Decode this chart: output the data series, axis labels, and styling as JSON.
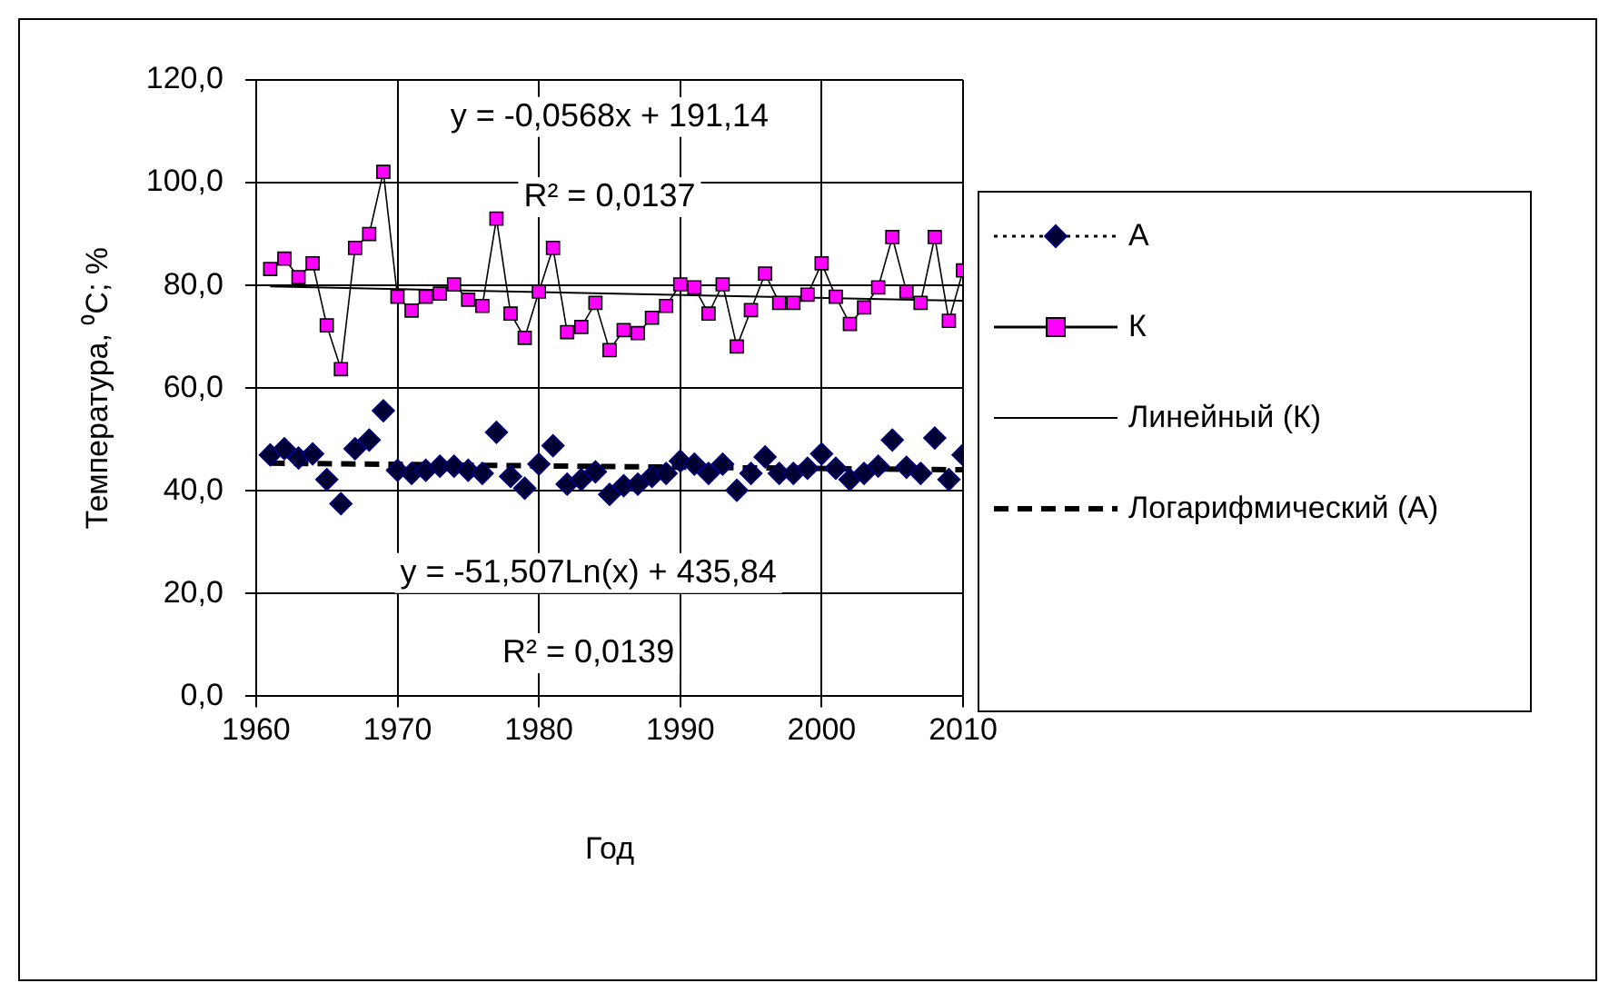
{
  "chart_data": {
    "type": "line",
    "ylabel": "Температура, ⁰C; %",
    "xlabel": "Год",
    "x": [
      1961,
      1962,
      1963,
      1964,
      1965,
      1966,
      1967,
      1968,
      1969,
      1970,
      1971,
      1972,
      1973,
      1974,
      1975,
      1976,
      1977,
      1978,
      1979,
      1980,
      1981,
      1982,
      1983,
      1984,
      1985,
      1986,
      1987,
      1988,
      1989,
      1990,
      1991,
      1992,
      1993,
      1994,
      1995,
      1996,
      1997,
      1998,
      1999,
      2000,
      2001,
      2002,
      2003,
      2004,
      2005,
      2006,
      2007,
      2008,
      2009,
      2010
    ],
    "xlim": [
      1960,
      2010
    ],
    "xticks": [
      1960,
      1970,
      1980,
      1990,
      2000,
      2010
    ],
    "ylim": [
      0,
      120
    ],
    "yticks": [
      {
        "value": 0,
        "label": "0,0"
      },
      {
        "value": 20,
        "label": "20,0"
      },
      {
        "value": 40,
        "label": "40,0"
      },
      {
        "value": 60,
        "label": "60,0"
      },
      {
        "value": 80,
        "label": "80,0"
      },
      {
        "value": 100,
        "label": "100,0"
      },
      {
        "value": 120,
        "label": "120,0"
      }
    ],
    "grid": true,
    "legend": "right",
    "series": [
      {
        "name": "А",
        "type": "scatter",
        "marker": "diamond",
        "line_style": "dotted",
        "color": "#000033",
        "values": [
          47.0,
          48.2,
          46.4,
          47.2,
          42.2,
          37.5,
          48.2,
          49.9,
          55.6,
          44.0,
          43.4,
          44.0,
          44.8,
          44.8,
          44.0,
          43.4,
          51.4,
          42.8,
          40.5,
          45.2,
          48.8,
          41.3,
          42.2,
          43.7,
          39.3,
          41.0,
          41.3,
          42.8,
          43.4,
          45.8,
          45.2,
          43.4,
          45.2,
          40.1,
          43.4,
          46.6,
          43.4,
          43.4,
          44.4,
          47.2,
          44.4,
          42.2,
          43.4,
          44.8,
          49.9,
          44.6,
          43.4,
          50.3,
          42.2,
          47.0
        ]
      },
      {
        "name": "К",
        "marker": "square",
        "line_style": "solid",
        "color": "#ff00ff",
        "values": [
          83.2,
          85.2,
          81.6,
          84.3,
          72.2,
          63.7,
          87.3,
          90.0,
          102.1,
          77.8,
          75.1,
          77.8,
          78.4,
          80.2,
          77.2,
          76.0,
          93.0,
          74.5,
          69.8,
          78.8,
          87.3,
          70.9,
          71.9,
          76.6,
          67.4,
          71.3,
          70.7,
          73.7,
          76.0,
          80.2,
          79.6,
          74.5,
          80.2,
          68.1,
          75.2,
          82.3,
          76.6,
          76.6,
          78.2,
          84.3,
          77.8,
          72.5,
          75.7,
          79.6,
          89.4,
          78.8,
          76.6,
          89.4,
          73.1,
          82.9
        ]
      },
      {
        "name": "Линейный (К)",
        "marker": "none",
        "line_style": "solid",
        "color": "#000000",
        "x": [
          1961,
          2010
        ],
        "values": [
          79.8,
          77.0
        ]
      },
      {
        "name": "Логарифмический (А)",
        "marker": "none",
        "line_style": "dashed",
        "color": "#000000",
        "x": [
          1961,
          1975,
          1990,
          2010
        ],
        "values": [
          45.4,
          45.0,
          44.6,
          44.1
        ]
      }
    ],
    "annotations": [
      "y = -0,0568x + 191,14",
      "R² = 0,0137",
      "y = -51,507Ln(x) + 435,84",
      "R² = 0,0139"
    ]
  }
}
